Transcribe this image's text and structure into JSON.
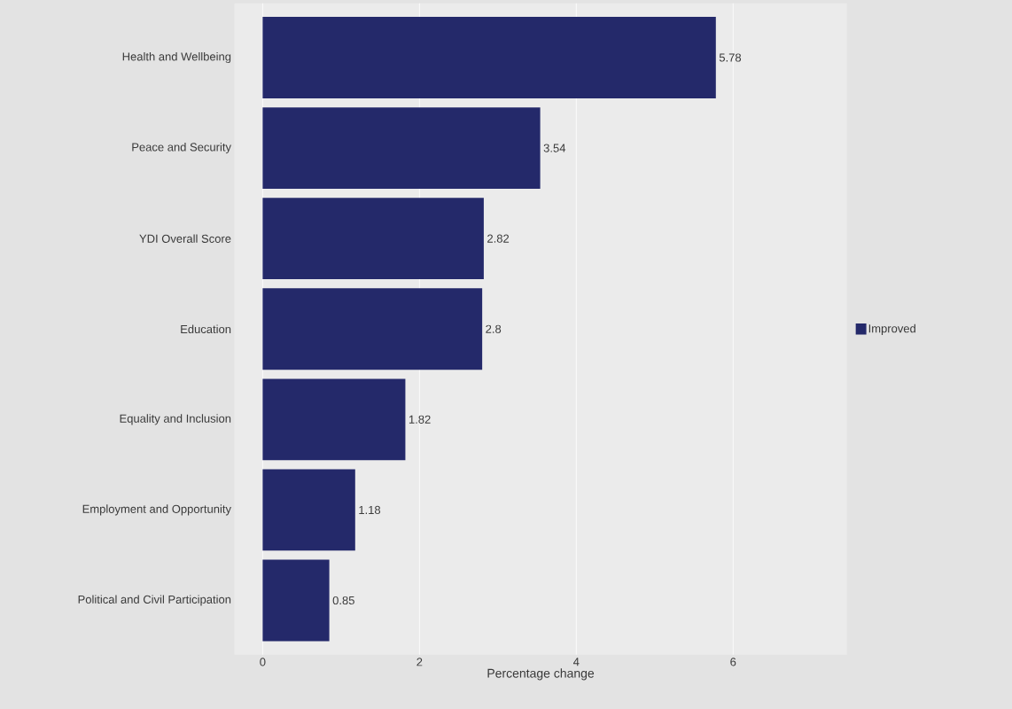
{
  "chart_data": {
    "type": "bar",
    "orientation": "horizontal",
    "xlabel": "Percentage change",
    "categories": [
      "Health and Wellbeing",
      "Peace and Security",
      "YDI Overall Score",
      "Education",
      "Equality and Inclusion",
      "Employment and Opportunity",
      "Political and Civil Participation"
    ],
    "series": [
      {
        "name": "Improved",
        "color": "#24296a",
        "values": [
          5.78,
          3.54,
          2.82,
          2.8,
          1.82,
          1.18,
          0.85
        ]
      }
    ],
    "xlim": [
      -0.36,
      7.45
    ],
    "xticks": [
      0,
      2,
      4,
      6
    ],
    "grid": "x",
    "legend": "right",
    "data_labels": true
  }
}
